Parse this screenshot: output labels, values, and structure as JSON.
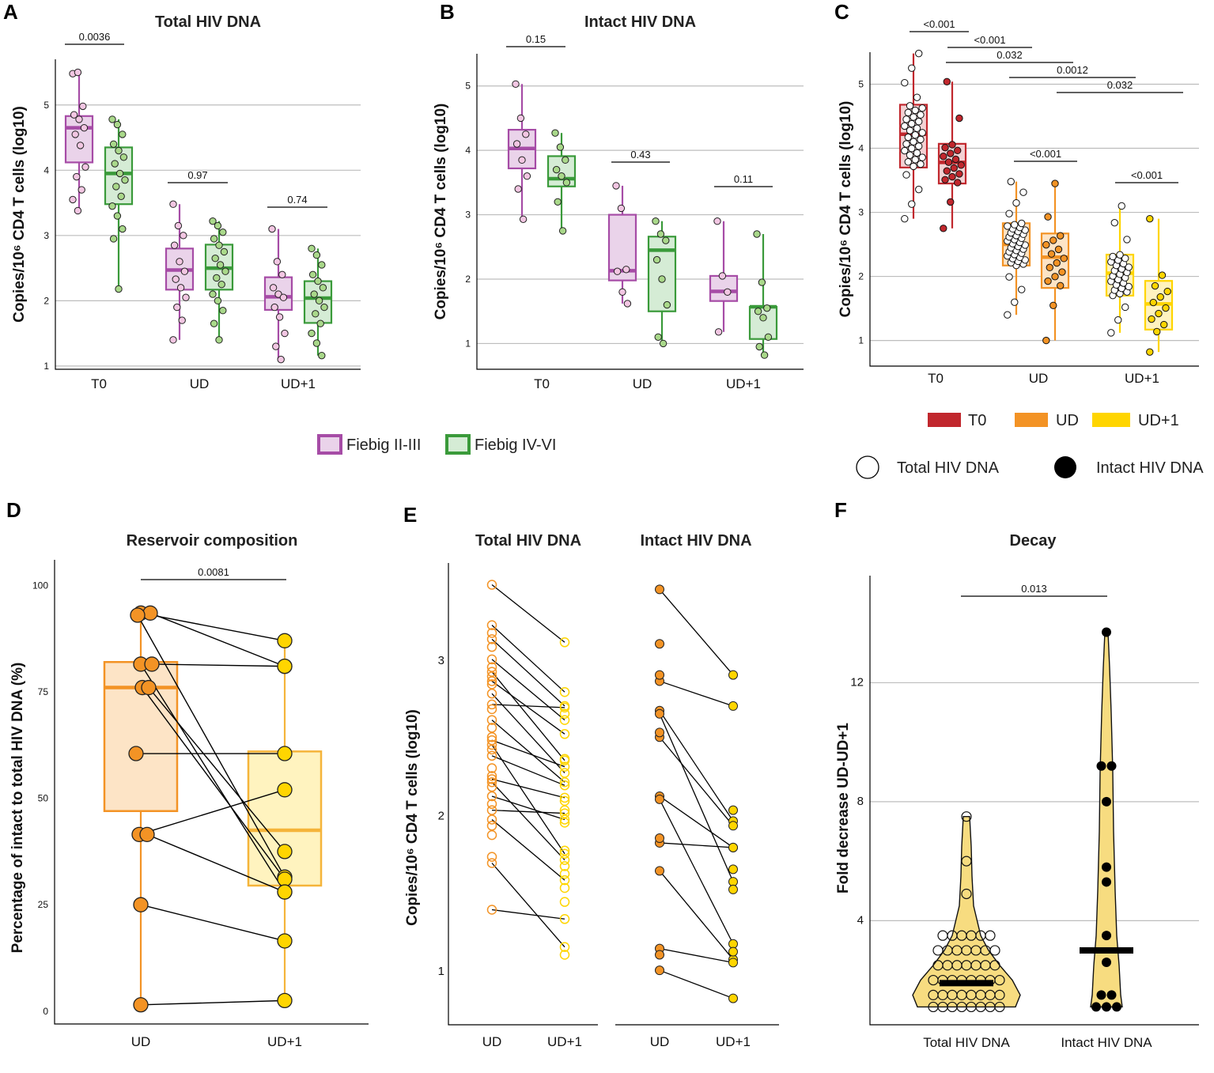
{
  "colors": {
    "fiebig_early": "#a64ca6",
    "fiebig_early_fill": "#ead3ea",
    "fiebig_late": "#3a9a3a",
    "fiebig_late_fill": "#d5ecd5",
    "fiebig_early_point": "#f2c6e2",
    "fiebig_late_point": "#a9d88a",
    "T0": "#c1272d",
    "UD": "#f39325",
    "UD1": "#ffd500",
    "T0_fill": "#f3d1d3",
    "UD_fill": "#fde4c6",
    "UD1_fill": "#fff3bf",
    "violin": "#f7dc80"
  },
  "legend_fiebig": {
    "early": "Fiebig II-III",
    "late": "Fiebig IV-VI"
  },
  "legend_c": {
    "t0": "T0",
    "ud": "UD",
    "ud1": "UD+1",
    "total": "Total HIV DNA",
    "intact": "Intact HIV DNA"
  },
  "chart_data": [
    {
      "panel": "A",
      "type": "box",
      "title": "Total HIV DNA",
      "ylabel": "Copies/10⁶ CD4 T cells (log10)",
      "categories": [
        "T0",
        "UD",
        "UD+1"
      ],
      "ylim": [
        0.95,
        5.7
      ],
      "yticks": [
        1,
        2,
        3,
        4,
        5
      ],
      "pvalues": [
        "0.0036",
        "0.97",
        "0.74"
      ],
      "series": [
        {
          "name": "Fiebig II-III",
          "box": [
            [
              4.12,
              4.65,
              4.83
            ],
            [
              2.17,
              2.47,
              2.8
            ],
            [
              1.86,
              2.06,
              2.36
            ]
          ],
          "whisker": [
            [
              3.38,
              5.5
            ],
            [
              1.4,
              3.48
            ],
            [
              1.1,
              3.1
            ]
          ],
          "points": [
            [
              5.48,
              5.5,
              4.98,
              4.85,
              4.78,
              4.65,
              4.55,
              4.38,
              4.05,
              3.9,
              3.7,
              3.55,
              3.38
            ],
            [
              3.48,
              3.15,
              3.0,
              2.85,
              2.6,
              2.45,
              2.33,
              2.2,
              2.05,
              1.9,
              1.7,
              1.4
            ],
            [
              3.1,
              2.6,
              2.4,
              2.2,
              2.1,
              2.05,
              1.9,
              1.75,
              1.5,
              1.3,
              1.1
            ]
          ]
        },
        {
          "name": "Fiebig IV-VI",
          "box": [
            [
              3.48,
              3.95,
              4.35
            ],
            [
              2.17,
              2.5,
              2.86
            ],
            [
              1.66,
              2.04,
              2.3
            ]
          ],
          "whisker": [
            [
              2.18,
              4.78
            ],
            [
              1.4,
              3.22
            ],
            [
              1.16,
              2.8
            ]
          ],
          "points": [
            [
              4.78,
              4.7,
              4.55,
              4.4,
              4.3,
              4.2,
              4.1,
              3.95,
              3.85,
              3.75,
              3.6,
              3.45,
              3.3,
              3.1,
              2.95,
              2.18
            ],
            [
              3.22,
              3.15,
              3.05,
              2.95,
              2.85,
              2.75,
              2.65,
              2.55,
              2.45,
              2.35,
              2.25,
              2.1,
              2.0,
              1.85,
              1.65,
              1.4
            ],
            [
              2.8,
              2.7,
              2.55,
              2.4,
              2.3,
              2.2,
              2.1,
              2.0,
              1.9,
              1.8,
              1.65,
              1.5,
              1.35,
              1.16
            ]
          ]
        }
      ]
    },
    {
      "panel": "B",
      "type": "box",
      "title": "Intact HIV DNA",
      "ylabel": "Copies/10⁶ CD4 T cells (log10)",
      "categories": [
        "T0",
        "UD",
        "UD+1"
      ],
      "ylim": [
        0.6,
        5.5
      ],
      "yticks": [
        1,
        2,
        3,
        4,
        5
      ],
      "pvalues": [
        "0.15",
        "0.43",
        "0.11"
      ],
      "series": [
        {
          "name": "Fiebig II-III",
          "box": [
            [
              3.72,
              4.03,
              4.32
            ],
            [
              1.98,
              2.13,
              3.0
            ],
            [
              1.66,
              1.81,
              2.05
            ]
          ],
          "whisker": [
            [
              2.93,
              5.03
            ],
            [
              1.62,
              3.45
            ],
            [
              1.18,
              2.9
            ]
          ],
          "points": [
            [
              5.03,
              4.5,
              4.25,
              4.1,
              3.85,
              3.6,
              3.4,
              2.93
            ],
            [
              3.45,
              3.1,
              2.15,
              2.12,
              1.8,
              1.62
            ],
            [
              2.9,
              2.05,
              1.8,
              1.18
            ]
          ]
        },
        {
          "name": "Fiebig IV-VI",
          "box": [
            [
              3.44,
              3.56,
              3.91
            ],
            [
              1.5,
              2.45,
              2.66
            ],
            [
              1.07,
              1.57,
              1.57
            ]
          ],
          "whisker": [
            [
              2.75,
              4.27
            ],
            [
              1.0,
              2.9
            ],
            [
              0.82,
              2.7
            ]
          ],
          "points": [
            [
              4.27,
              4.05,
              3.85,
              3.7,
              3.6,
              3.5,
              3.2,
              2.75
            ],
            [
              2.9,
              2.7,
              2.6,
              2.3,
              2.0,
              1.6,
              1.1,
              1.0
            ],
            [
              2.7,
              1.95,
              1.55,
              1.5,
              1.4,
              1.1,
              0.95,
              0.82
            ]
          ]
        }
      ]
    },
    {
      "panel": "C",
      "type": "box",
      "title": "",
      "ylabel": "Copies/10⁶ CD4 T cells (log10)",
      "categories": [
        "T0",
        "UD",
        "UD+1"
      ],
      "ylim": [
        0.6,
        5.5
      ],
      "yticks": [
        1,
        2,
        3,
        4,
        5
      ],
      "pvalues": [
        "<0.001",
        "<0.001",
        "0.032",
        "0.0012",
        "0.032",
        "<0.001",
        "<0.001"
      ],
      "series": [
        {
          "name": "Total HIV DNA",
          "box": [
            [
              3.7,
              4.22,
              4.68
            ],
            [
              2.17,
              2.5,
              2.83
            ],
            [
              1.7,
              2.05,
              2.34
            ]
          ],
          "whisker": [
            [
              2.9,
              5.48
            ],
            [
              1.4,
              3.48
            ],
            [
              1.12,
              3.1
            ]
          ]
        },
        {
          "name": "Intact HIV DNA",
          "box": [
            [
              3.45,
              3.78,
              4.07
            ],
            [
              1.82,
              2.3,
              2.67
            ],
            [
              1.17,
              1.57,
              1.93
            ]
          ],
          "whisker": [
            [
              2.75,
              5.04
            ],
            [
              1.0,
              3.45
            ],
            [
              0.82,
              2.9
            ]
          ]
        }
      ]
    },
    {
      "panel": "D",
      "type": "paired box",
      "title": "Reservoir composition",
      "ylabel": "Percentage of intact to total HIV DNA (%)",
      "categories": [
        "UD",
        "UD+1"
      ],
      "ylim": [
        -3,
        106
      ],
      "yticks": [
        0,
        25,
        50,
        75,
        100
      ],
      "pvalue": "0.0081",
      "box": [
        [
          47,
          76,
          82
        ],
        [
          29.5,
          42.5,
          61
        ]
      ],
      "whisker": [
        [
          1.5,
          93.5
        ],
        [
          2.5,
          87
        ]
      ],
      "pairs": [
        [
          93.5,
          87
        ],
        [
          93.5,
          81
        ],
        [
          93,
          31.5
        ],
        [
          81.5,
          28
        ],
        [
          81.5,
          81
        ],
        [
          76,
          31
        ],
        [
          76,
          37.5
        ],
        [
          60.5,
          60.5
        ],
        [
          41.5,
          52
        ],
        [
          41.5,
          28
        ],
        [
          25,
          16.5
        ],
        [
          1.5,
          2.5
        ]
      ]
    },
    {
      "panel": "E",
      "type": "paired scatter",
      "titles": [
        "Total HIV DNA",
        "Intact HIV DNA"
      ],
      "ylabel": "Copies/10⁶ CD4 T cells (log10)",
      "categories": [
        "UD",
        "UD+1"
      ],
      "ylim": [
        0.65,
        3.62
      ],
      "yticks": [
        1,
        2,
        3
      ],
      "total_pairs": [
        [
          3.48,
          3.11
        ],
        [
          3.22,
          2.79
        ],
        [
          3.13,
          2.7
        ],
        [
          3.0,
          2.61
        ],
        [
          2.92,
          2.35
        ],
        [
          2.86,
          2.52
        ],
        [
          2.78,
          2.27
        ],
        [
          2.71,
          2.69
        ],
        [
          2.61,
          2.21
        ],
        [
          2.48,
          2.31
        ],
        [
          2.45,
          1.75
        ],
        [
          2.38,
          2.19
        ],
        [
          2.23,
          2.11
        ],
        [
          2.21,
          1.71
        ],
        [
          2.12,
          1.97
        ],
        [
          2.03,
          2.01
        ],
        [
          1.97,
          1.58
        ],
        [
          1.69,
          1.15
        ],
        [
          1.39,
          1.33
        ]
      ],
      "total_extra_ud": [
        3.17,
        3.08,
        2.95,
        2.89,
        2.84,
        2.68,
        2.56,
        2.5,
        2.42,
        2.3,
        2.25,
        2.18,
        2.07,
        1.93,
        1.87,
        1.73
      ],
      "total_extra_ud1": [
        2.65,
        2.36,
        2.09,
        2.03,
        1.95,
        1.77,
        1.67,
        1.62,
        1.53,
        1.44,
        1.1
      ],
      "intact_pairs": [
        [
          3.45,
          2.9
        ],
        [
          2.86,
          2.7
        ],
        [
          2.67,
          1.96
        ],
        [
          2.65,
          1.57
        ],
        [
          2.5,
          1.93
        ],
        [
          2.12,
          1.79
        ],
        [
          2.1,
          1.17
        ],
        [
          1.82,
          1.79
        ],
        [
          1.64,
          1.07
        ],
        [
          1.14,
          1.05
        ],
        [
          1.0,
          0.82
        ]
      ],
      "intact_extra_ud": [
        3.1,
        2.9,
        2.53,
        1.85,
        1.1
      ],
      "intact_extra_ud1": [
        2.03,
        1.65,
        1.52,
        1.12
      ]
    },
    {
      "panel": "F",
      "type": "violin",
      "title": "Decay",
      "ylabel": "Fold decrease UD-UD+1",
      "categories": [
        "Total HIV DNA",
        "Intact HIV DNA"
      ],
      "ylim": [
        0.5,
        15.6
      ],
      "yticks": [
        4,
        8,
        12
      ],
      "pvalue": "0.013",
      "medians": [
        1.9,
        3.0
      ],
      "total_points": [
        7.5,
        6.0,
        4.9,
        3.5,
        3.5,
        3.5,
        3.5,
        3.5,
        3.5,
        3.0,
        3.0,
        3.0,
        3.0,
        3.0,
        3.0,
        3.0,
        2.5,
        2.5,
        2.5,
        2.5,
        2.5,
        2.5,
        2.5,
        2.0,
        2.0,
        2.0,
        2.0,
        2.0,
        2.0,
        2.0,
        2.0,
        1.5,
        1.5,
        1.5,
        1.5,
        1.5,
        1.5,
        1.5,
        1.5,
        1.1,
        1.1,
        1.1,
        1.1,
        1.1,
        1.1,
        1.1,
        1.1
      ],
      "intact_points": [
        13.7,
        9.2,
        9.2,
        8.0,
        5.8,
        5.3,
        3.5,
        2.6,
        1.5,
        1.5,
        1.1,
        1.1,
        1.1
      ]
    }
  ]
}
